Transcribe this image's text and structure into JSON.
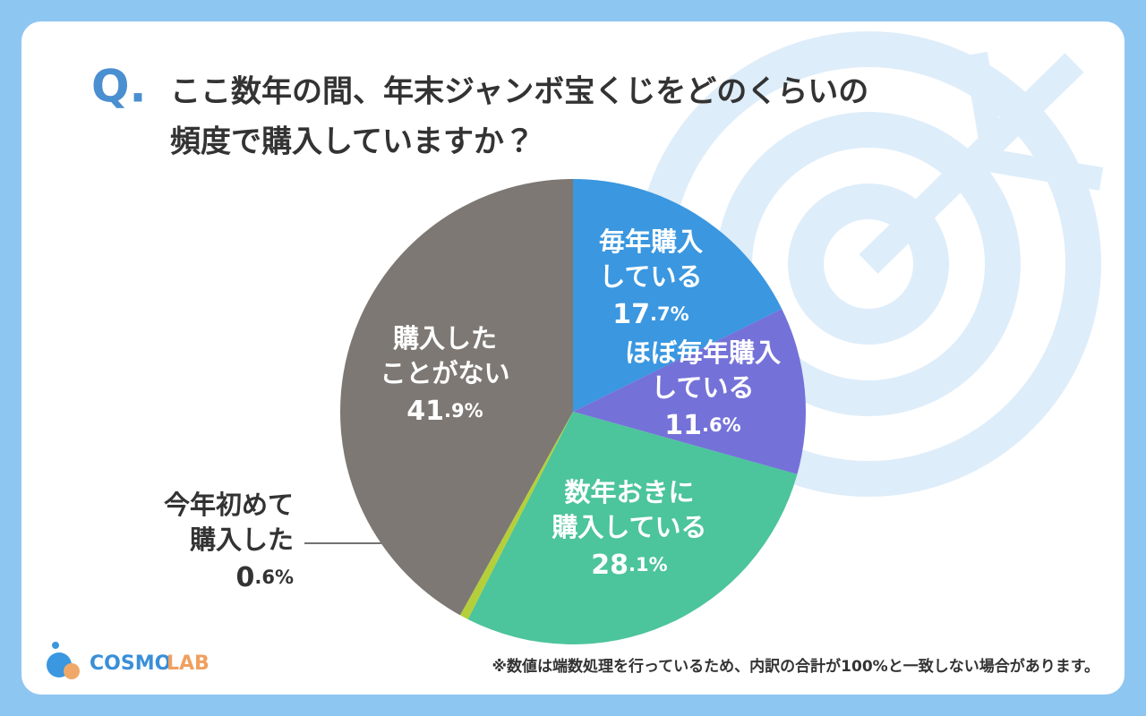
{
  "chart_data": {
    "type": "pie",
    "question_mark": "Q.",
    "title": [
      "ここ数年の間、年末ジャンボ宝くじをどのくらいの",
      "頻度で購入していますか？"
    ],
    "categories": [
      [
        "毎年購入",
        "している"
      ],
      [
        "ほぼ毎年購入",
        "している"
      ],
      [
        "数年おきに",
        "購入している"
      ],
      [
        "今年初めて",
        "購入した"
      ],
      [
        "購入した",
        "ことがない"
      ]
    ],
    "values": [
      17.7,
      11.6,
      28.1,
      0.6,
      41.9
    ],
    "value_labels": [
      "17.7%",
      "11.6%",
      "28.1%",
      "0.6%",
      "41.9%"
    ],
    "colors": [
      "#3a97e0",
      "#7472d8",
      "#4cc49c",
      "#b5cf3a",
      "#7d7873"
    ]
  },
  "logo": [
    "COSMO",
    "LAB"
  ],
  "footnote": "※数値は端数処理を行っているため、内訳の合計が100%と一致しない場合があります。"
}
